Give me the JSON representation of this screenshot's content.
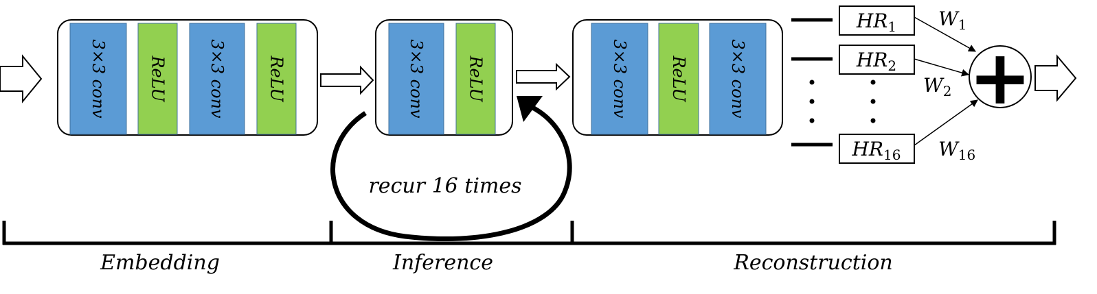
{
  "colors": {
    "conv": "#5b9bd5",
    "relu": "#92d050",
    "stroke": "#000000",
    "background": "#ffffff"
  },
  "embedding": {
    "blocks": [
      {
        "type": "conv",
        "label": "3×3 conv"
      },
      {
        "type": "relu",
        "label": "ReLU"
      },
      {
        "type": "conv",
        "label": "3×3 conv"
      },
      {
        "type": "relu",
        "label": "ReLU"
      }
    ]
  },
  "inference": {
    "blocks": [
      {
        "type": "conv",
        "label": "3×3 conv"
      },
      {
        "type": "relu",
        "label": "ReLU"
      }
    ],
    "loop_label": "recur 16 times"
  },
  "reconstruction": {
    "blocks": [
      {
        "type": "conv",
        "label": "3×3 conv"
      },
      {
        "type": "relu",
        "label": "ReLU"
      },
      {
        "type": "conv",
        "label": "3×3 conv"
      }
    ]
  },
  "outputs": [
    {
      "base": "HR",
      "sub": "1",
      "weight_base": "W",
      "weight_sub": "1"
    },
    {
      "base": "HR",
      "sub": "2",
      "weight_base": "W",
      "weight_sub": "2"
    },
    {
      "base": "HR",
      "sub": "16",
      "weight_base": "W",
      "weight_sub": "16"
    }
  ],
  "sum_symbol": "+",
  "stage_labels": {
    "embedding": "Embedding",
    "inference": "Inference",
    "reconstruction": "Reconstruction"
  }
}
